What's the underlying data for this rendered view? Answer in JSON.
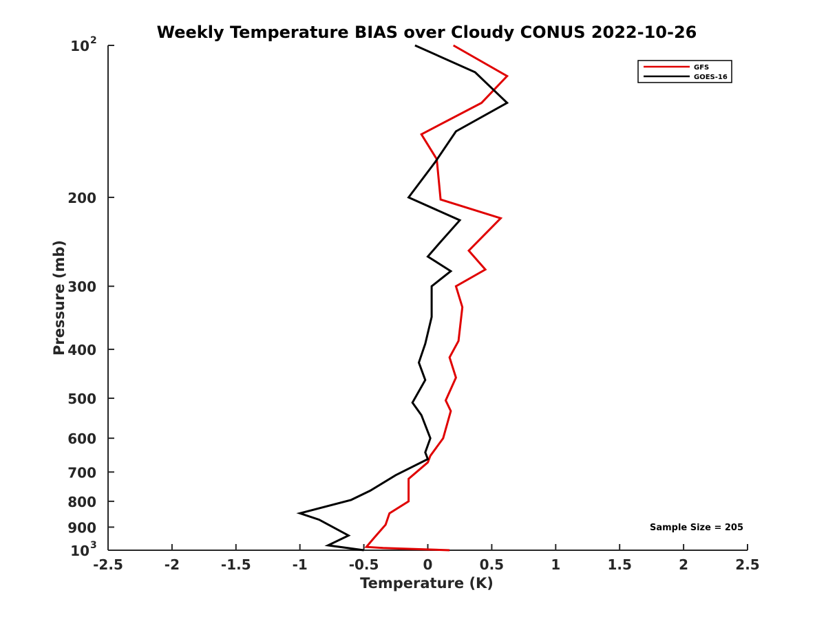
{
  "chart_data": {
    "type": "line",
    "title": "Weekly Temperature BIAS over Cloudy CONUS 2022-10-26",
    "xlabel": "Temperature (K)",
    "ylabel": "Pressure (mb)",
    "xlim": [
      -2.5,
      2.5
    ],
    "ylim": [
      100,
      1000
    ],
    "y_scale": "log",
    "y_reversed": true,
    "grid": false,
    "legend_position": "top-right",
    "x_ticks": [
      "-2.5",
      "-2",
      "-1.5",
      "-1",
      "-0.5",
      "0",
      "0.5",
      "1",
      "1.5",
      "2",
      "2.5"
    ],
    "x_tick_values": [
      -2.5,
      -2,
      -1.5,
      -1,
      -0.5,
      0,
      0.5,
      1,
      1.5,
      2,
      2.5
    ],
    "y_ticks": [
      {
        "value": 100,
        "base": "10",
        "exp": "2"
      },
      {
        "value": 200,
        "base": "200",
        "exp": ""
      },
      {
        "value": 300,
        "base": "300",
        "exp": ""
      },
      {
        "value": 400,
        "base": "400",
        "exp": ""
      },
      {
        "value": 500,
        "base": "500",
        "exp": ""
      },
      {
        "value": 600,
        "base": "600",
        "exp": ""
      },
      {
        "value": 700,
        "base": "700",
        "exp": ""
      },
      {
        "value": 800,
        "base": "800",
        "exp": ""
      },
      {
        "value": 900,
        "base": "900",
        "exp": ""
      },
      {
        "value": 1000,
        "base": "10",
        "exp": "3"
      }
    ],
    "annotation": "Sample Size = 205",
    "series": [
      {
        "name": "GFS",
        "color": "#e00000",
        "points": [
          [
            0.2,
            100
          ],
          [
            0.62,
            115
          ],
          [
            0.42,
            130
          ],
          [
            -0.05,
            150
          ],
          [
            0.07,
            168
          ],
          [
            0.1,
            202
          ],
          [
            0.57,
            220
          ],
          [
            0.32,
            255
          ],
          [
            0.45,
            278
          ],
          [
            0.22,
            300
          ],
          [
            0.27,
            330
          ],
          [
            0.24,
            385
          ],
          [
            0.17,
            415
          ],
          [
            0.22,
            455
          ],
          [
            0.14,
            505
          ],
          [
            0.18,
            530
          ],
          [
            0.12,
            600
          ],
          [
            0.02,
            650
          ],
          [
            0.0,
            670
          ],
          [
            -0.15,
            722
          ],
          [
            -0.15,
            770
          ],
          [
            -0.15,
            800
          ],
          [
            -0.3,
            845
          ],
          [
            -0.33,
            890
          ],
          [
            -0.42,
            945
          ],
          [
            -0.48,
            985
          ],
          [
            -0.35,
            990
          ],
          [
            0.17,
            1000
          ]
        ]
      },
      {
        "name": "GOES-16",
        "color": "#000000",
        "points": [
          [
            -0.1,
            100
          ],
          [
            0.37,
            113
          ],
          [
            0.62,
            130
          ],
          [
            0.22,
            148
          ],
          [
            0.06,
            170
          ],
          [
            -0.15,
            200
          ],
          [
            0.25,
            222
          ],
          [
            0.1,
            245
          ],
          [
            0.0,
            262
          ],
          [
            0.18,
            280
          ],
          [
            0.03,
            300
          ],
          [
            0.03,
            345
          ],
          [
            -0.02,
            390
          ],
          [
            -0.07,
            425
          ],
          [
            -0.02,
            460
          ],
          [
            -0.12,
            510
          ],
          [
            -0.05,
            540
          ],
          [
            0.02,
            600
          ],
          [
            -0.02,
            640
          ],
          [
            -0.0,
            660
          ],
          [
            -0.25,
            710
          ],
          [
            -0.45,
            762
          ],
          [
            -0.6,
            795
          ],
          [
            -1.0,
            845
          ],
          [
            -0.85,
            870
          ],
          [
            -0.62,
            935
          ],
          [
            -0.78,
            978
          ],
          [
            -0.5,
            1000
          ]
        ]
      }
    ]
  }
}
